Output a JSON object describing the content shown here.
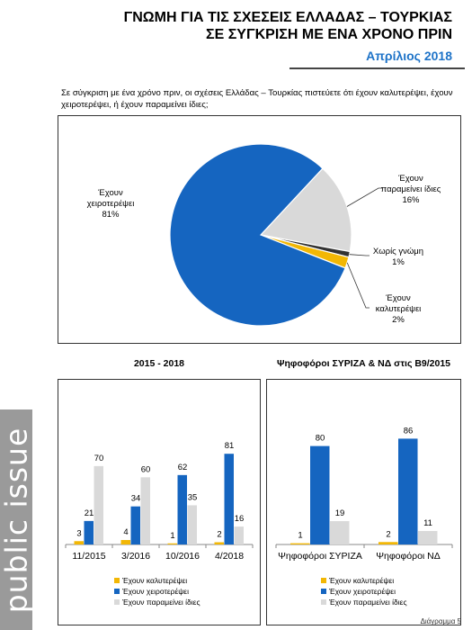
{
  "header": {
    "title_line1": "ΓΝΩΜΗ ΓΙΑ ΤΙΣ ΣΧΕΣΕΙΣ ΕΛΛΑΔΑΣ – ΤΟΥΡΚΙΑΣ",
    "title_line2": "ΣΕ ΣΥΓΚΡΙΣΗ ΜΕ ΕΝΑ ΧΡΟΝΟ ΠΡΙΝ",
    "date": "Απρίλιος 2018"
  },
  "question": "Σε σύγκριση με ένα χρόνο πριν, οι σχέσεις Ελλάδας – Τουρκίας πιστεύετε ότι έχουν καλυτερέψει, έχουν χειροτερέψει, ή έχουν παραμείνει ίδιες;",
  "brand": "public issue",
  "page_label": "Διάγραμμα 5",
  "colors": {
    "better": "#F2B705",
    "worse": "#1565C0",
    "same": "#D9D9D9",
    "no_opinion": "#333333",
    "accent": "#1E73C8"
  },
  "chart_data": [
    {
      "type": "pie",
      "title": "",
      "slices": [
        {
          "label_line1": "Έχουν",
          "label_line2": "χειροτερέψει",
          "value_label": "81%",
          "value": 81,
          "color": "#1565C0"
        },
        {
          "label_line1": "Έχουν",
          "label_line2": "παραμείνει ίδιες",
          "value_label": "16%",
          "value": 16,
          "color": "#D9D9D9"
        },
        {
          "label_line1": "Χωρίς γνώμη",
          "label_line2": "",
          "value_label": "1%",
          "value": 1,
          "color": "#333333"
        },
        {
          "label_line1": "Έχουν",
          "label_line2": "καλυτερέψει",
          "value_label": "2%",
          "value": 2,
          "color": "#F2B705"
        }
      ]
    },
    {
      "type": "bar",
      "title": "2015 - 2018",
      "categories": [
        "11/2015",
        "3/2016",
        "10/2016",
        "4/2018"
      ],
      "series": [
        {
          "name": "Έχουν καλυτερέψει",
          "values": [
            3,
            4,
            1,
            2
          ],
          "color": "#F2B705"
        },
        {
          "name": "Έχουν χειροτερέψει",
          "values": [
            21,
            34,
            62,
            81
          ],
          "color": "#1565C0"
        },
        {
          "name": "Έχουν παραμείνει ίδιες",
          "values": [
            70,
            60,
            35,
            16
          ],
          "color": "#D9D9D9"
        }
      ],
      "ylim": [
        0,
        90
      ],
      "legend": "bottom"
    },
    {
      "type": "bar",
      "title": "Ψηφοφόροι ΣΥΡΙΖΑ & ΝΔ στις Β9/2015",
      "categories": [
        "Ψηφοφόροι ΣΥΡΙΖΑ",
        "Ψηφοφόροι ΝΔ"
      ],
      "series": [
        {
          "name": "Έχουν καλυτερέψει",
          "values": [
            1,
            2
          ],
          "color": "#F2B705"
        },
        {
          "name": "Έχουν χειροτερέψει",
          "values": [
            80,
            86
          ],
          "color": "#1565C0"
        },
        {
          "name": "Έχουν παραμείνει ίδιες",
          "values": [
            19,
            11
          ],
          "color": "#D9D9D9"
        }
      ],
      "ylim": [
        0,
        95
      ],
      "legend": "bottom"
    }
  ]
}
